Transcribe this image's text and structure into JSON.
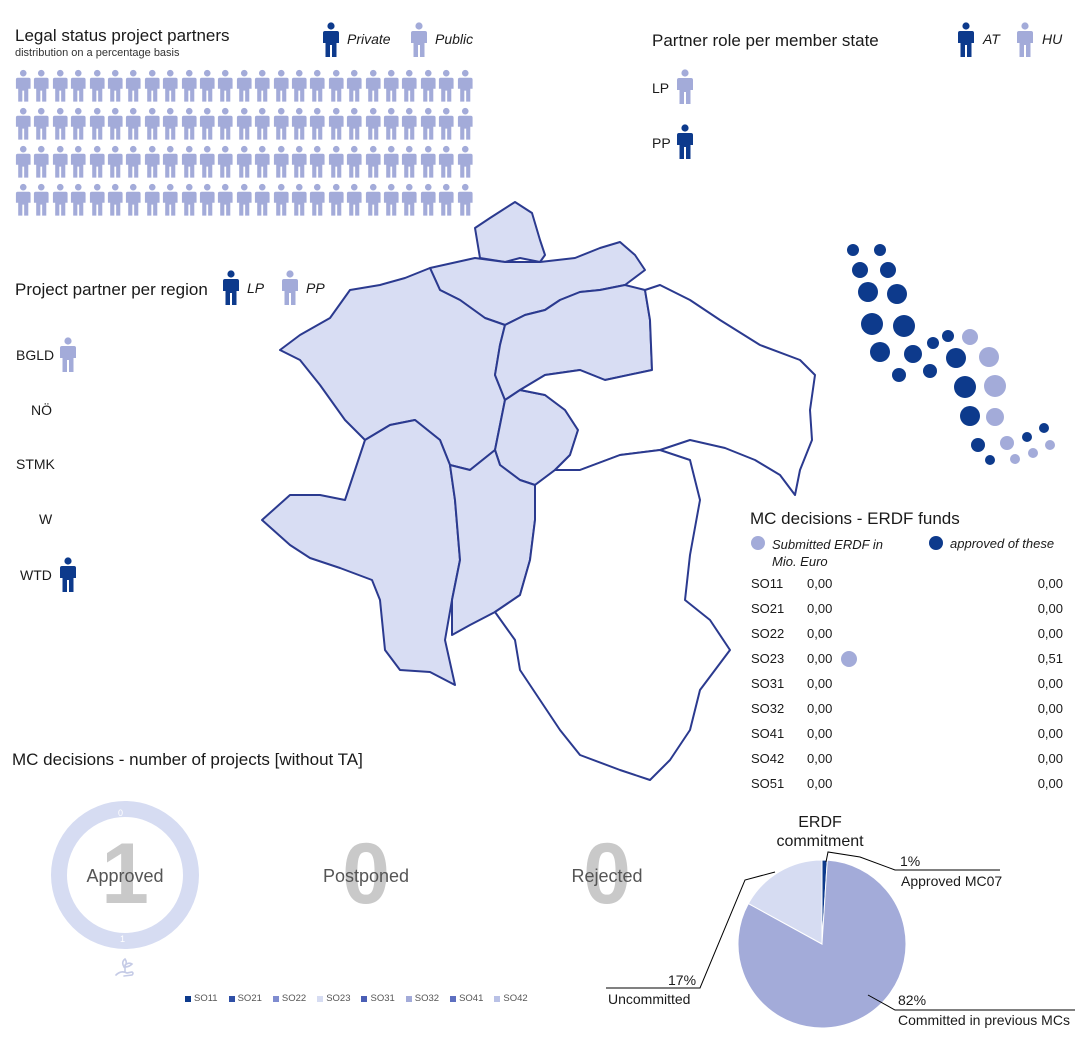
{
  "colors": {
    "dark": "#0d3a8c",
    "light": "#a3abd9",
    "pale": "#d6dcf2",
    "region": "#d8ddf3",
    "outline": "#2b3a8f"
  },
  "legal": {
    "title": "Legal status project partners",
    "subtitle": "distribution on a percentage basis",
    "legend_private": "Private",
    "legend_public": "Public",
    "grid_rows": 4,
    "grid_cols": 25,
    "private_count": 0
  },
  "role": {
    "title": "Partner role per member state",
    "legend_at": "AT",
    "legend_hu": "HU",
    "rows": [
      {
        "label": "LP",
        "country": "HU",
        "count": 1
      },
      {
        "label": "PP",
        "country": "AT",
        "count": 1
      }
    ]
  },
  "region": {
    "title": "Project partner per region",
    "legend_lp": "LP",
    "legend_pp": "PP",
    "rows": [
      {
        "label": "BGLD",
        "role": "PP",
        "count": 1
      },
      {
        "label": "NÖ",
        "role": "",
        "count": 0
      },
      {
        "label": "STMK",
        "role": "",
        "count": 0
      },
      {
        "label": "W",
        "role": "",
        "count": 0
      },
      {
        "label": "WTD",
        "role": "LP",
        "count": 1
      }
    ]
  },
  "mc_funds": {
    "title": "MC decisions - ERDF funds",
    "legend_submitted": "Submitted ERDF in Mio. Euro",
    "legend_approved": "approved of these",
    "rows": [
      {
        "so": "SO11",
        "approved": "0,00",
        "submitted": "0,00"
      },
      {
        "so": "SO21",
        "approved": "0,00",
        "submitted": "0,00"
      },
      {
        "so": "SO22",
        "approved": "0,00",
        "submitted": "0,00"
      },
      {
        "so": "SO23",
        "approved": "0,00",
        "submitted": "0,51"
      },
      {
        "so": "SO31",
        "approved": "0,00",
        "submitted": "0,00"
      },
      {
        "so": "SO32",
        "approved": "0,00",
        "submitted": "0,00"
      },
      {
        "so": "SO41",
        "approved": "0,00",
        "submitted": "0,00"
      },
      {
        "so": "SO42",
        "approved": "0,00",
        "submitted": "0,00"
      },
      {
        "so": "SO51",
        "approved": "0,00",
        "submitted": "0,00"
      }
    ]
  },
  "mc_projects": {
    "title": "MC decisions - number of projects [without TA]",
    "approved": {
      "label": "Approved",
      "value": "1"
    },
    "postponed": {
      "label": "Postponed",
      "value": "0"
    },
    "rejected": {
      "label": "Rejected",
      "value": "0"
    },
    "ring_top": "0",
    "ring_bottom": "1",
    "legend": [
      "SO11",
      "SO21",
      "SO22",
      "SO23",
      "SO31",
      "SO32",
      "SO41",
      "SO42"
    ]
  },
  "chart_data": {
    "type": "pie",
    "title": "ERDF commitment",
    "slices": [
      {
        "label": "Approved MC07",
        "value": 1,
        "display": "1%",
        "color": "#0d3a8c"
      },
      {
        "label": "Committed in previous MCs",
        "value": 82,
        "display": "82%",
        "color": "#a3abd9"
      },
      {
        "label": "Uncommitted",
        "value": 17,
        "display": "17%",
        "color": "#d6dcf2"
      }
    ]
  }
}
